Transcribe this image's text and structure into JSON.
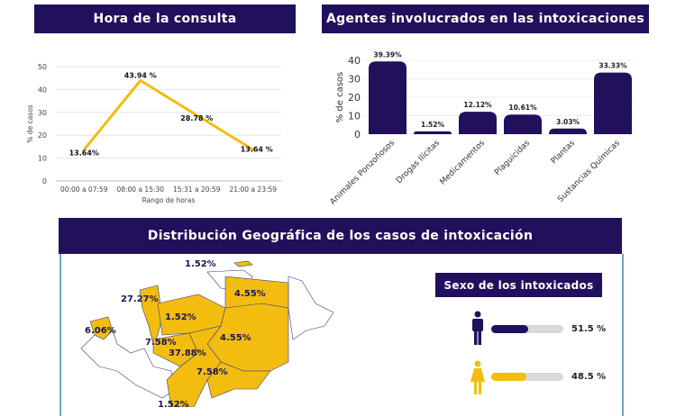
{
  "colors": {
    "navy": "#21115d",
    "yellow": "#f3bd10",
    "grey": "#d9d9d9",
    "frame": "#6aa6d8"
  },
  "chart_data": [
    {
      "type": "line",
      "title": "Hora de la consulta",
      "xlabel": "Rango de horas",
      "ylabel": "% de casos",
      "ylim": [
        0,
        50
      ],
      "yticks": [
        0,
        10,
        20,
        30,
        40,
        50
      ],
      "grid": true,
      "categories": [
        "00:00 a 07:59",
        "08:00 a 15:30",
        "15:31 a 20:59",
        "21:00 a 23:59"
      ],
      "values": [
        13.64,
        43.94,
        28.78,
        13.64
      ],
      "data_labels": [
        "13.64%",
        "43.94 %",
        "28.78 %",
        "13.64 %"
      ],
      "color": "#f3bd10"
    },
    {
      "type": "bar",
      "title": "Agentes involucrados en las intoxicaciones",
      "xlabel": "",
      "ylabel": "% de casos",
      "ylim": [
        0,
        40
      ],
      "yticks": [
        0,
        10,
        20,
        30,
        40
      ],
      "grid": true,
      "categories": [
        "Animales Ponzoñosos",
        "Drogas Ilícitas",
        "Medicamentos",
        "Plaguicidas",
        "Plantas",
        "Sustancias Químicas"
      ],
      "values": [
        39.39,
        1.52,
        12.12,
        10.61,
        3.03,
        33.33
      ],
      "data_labels": [
        "39.39%",
        "1.52%",
        "12.12%",
        "10.61%",
        "3.03%",
        "33.33%"
      ],
      "color": "#21115d"
    }
  ],
  "map": {
    "title": "Distribución Geográfica de los casos de intoxicación",
    "labels": [
      "1.52%",
      "27.27%",
      "4.55%",
      "1.52%",
      "6.06%",
      "7.58%",
      "4.55%",
      "37.88%",
      "7.58%",
      "1.52%"
    ]
  },
  "sex": {
    "title": "Sexo de los intoxicados",
    "items": [
      {
        "icon": "male-icon",
        "value": 51.5,
        "label": "51.5 %",
        "color": "#21115d"
      },
      {
        "icon": "female-icon",
        "value": 48.5,
        "label": "48.5 %",
        "color": "#f3bd10"
      }
    ]
  }
}
